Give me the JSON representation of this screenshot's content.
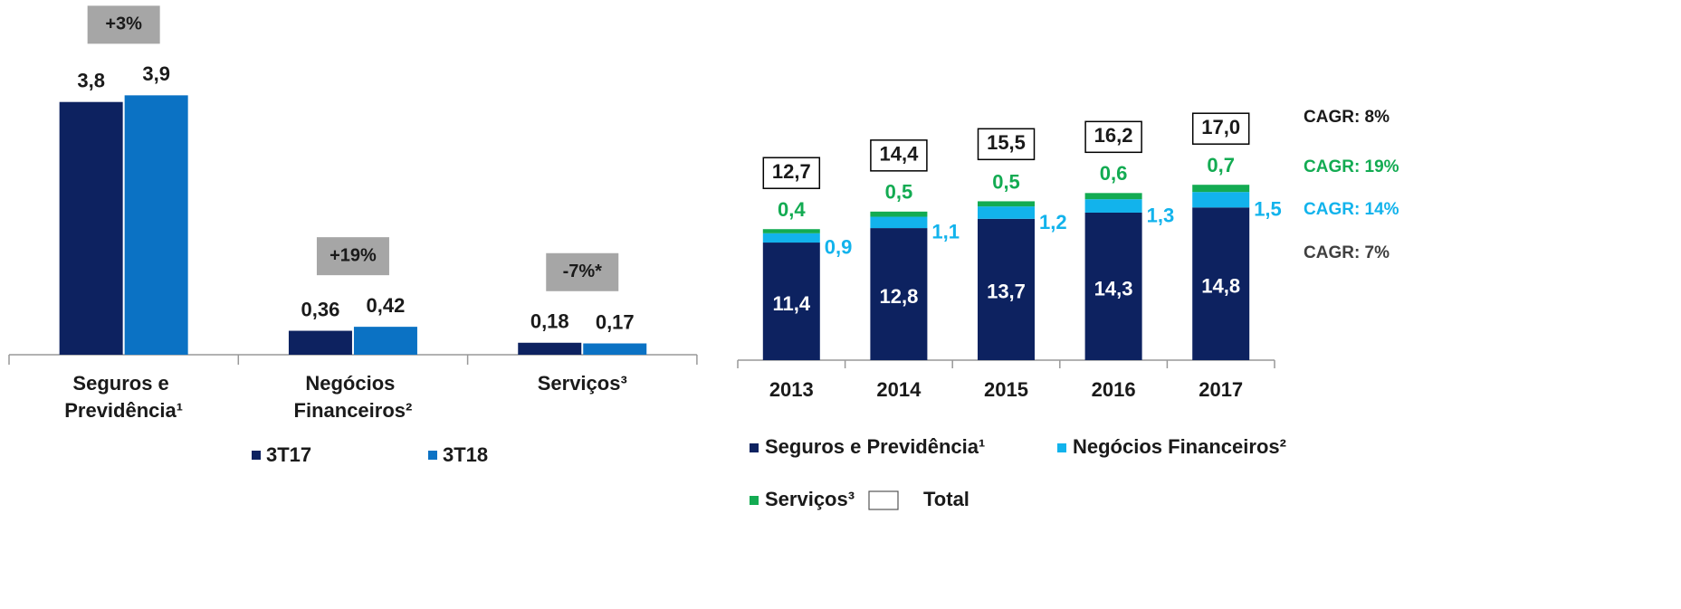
{
  "chart_data": [
    {
      "type": "bar",
      "categories": [
        "Seguros e Previdência¹",
        "Negócios Financeiros²",
        "Serviços³"
      ],
      "growth_labels": [
        "+3%",
        "+19%",
        "-7%*"
      ],
      "series": [
        {
          "name": "3T17",
          "color": "#0d2260",
          "values": [
            3.8,
            0.36,
            0.18
          ],
          "value_labels": [
            "3,8",
            "0,36",
            "0,18"
          ]
        },
        {
          "name": "3T18",
          "color": "#0b72c4",
          "values": [
            3.9,
            0.42,
            0.17
          ],
          "value_labels": [
            "3,9",
            "0,42",
            "0,17"
          ]
        }
      ]
    },
    {
      "type": "stacked_bar",
      "categories": [
        "2013",
        "2014",
        "2015",
        "2016",
        "2017"
      ],
      "series": [
        {
          "name": "Seguros e Previdência¹",
          "color": "#0d2260",
          "values": [
            11.4,
            12.8,
            13.7,
            14.3,
            14.8
          ],
          "value_labels": [
            "11,4",
            "12,8",
            "13,7",
            "14,3",
            "14,8"
          ],
          "cagr": "CAGR: 7%",
          "cagr_color": "#404040"
        },
        {
          "name": "Negócios Financeiros²",
          "color": "#12b3ec",
          "values": [
            0.9,
            1.1,
            1.2,
            1.3,
            1.5
          ],
          "value_labels": [
            "0,9",
            "1,1",
            "1,2",
            "1,3",
            "1,5"
          ],
          "cagr": "CAGR: 14%"
        },
        {
          "name": "Serviços³",
          "color": "#13ab52",
          "values": [
            0.4,
            0.5,
            0.5,
            0.6,
            0.7
          ],
          "value_labels": [
            "0,4",
            "0,5",
            "0,5",
            "0,6",
            "0,7"
          ],
          "cagr": "CAGR: 19%"
        }
      ],
      "total": {
        "name": "Total",
        "values": [
          12.7,
          14.4,
          15.5,
          16.2,
          17.0
        ],
        "value_labels": [
          "12,7",
          "14,4",
          "15,5",
          "16,2",
          "17,0"
        ],
        "cagr": "CAGR: 8%",
        "color": "#1a1a1a"
      }
    }
  ]
}
